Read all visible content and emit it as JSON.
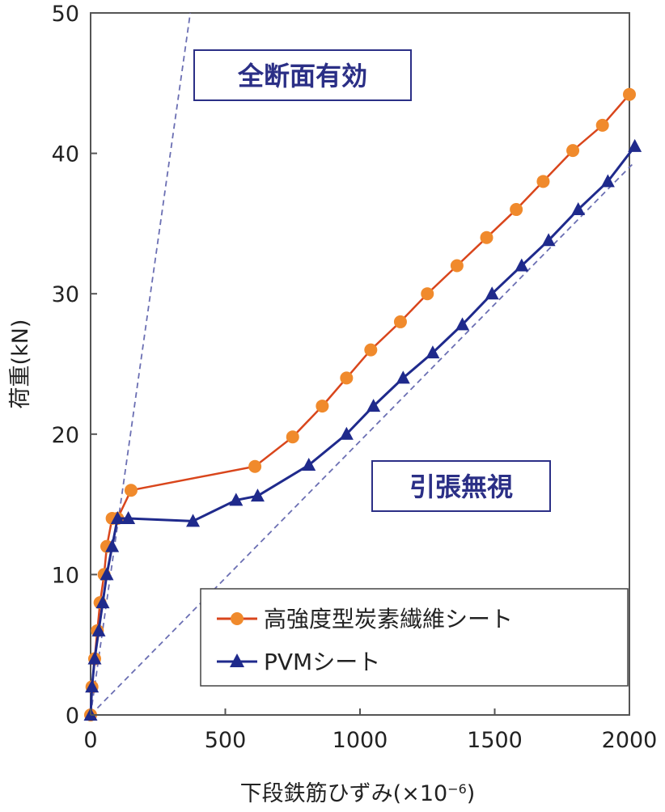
{
  "chart_data": {
    "type": "line",
    "xlabel": "下段鉄筋ひずみ(×10",
    "xlabel_exp": "−6",
    "xlabel_close": ")",
    "ylabel": "荷重(kN)",
    "xlim": [
      0,
      2000
    ],
    "ylim": [
      0,
      50
    ],
    "xticks": [
      0,
      500,
      1000,
      1500,
      2000
    ],
    "yticks": [
      0,
      10,
      20,
      30,
      40,
      50
    ],
    "grid": false,
    "legend_position": "bottom-right",
    "series": [
      {
        "name": "高強度型炭素繊維シート",
        "color": "#d9461c",
        "marker_color": "#f08a2c",
        "marker": "circle",
        "x": [
          0,
          5,
          15,
          25,
          35,
          50,
          60,
          80,
          100,
          150,
          610,
          750,
          860,
          950,
          1040,
          1150,
          1250,
          1360,
          1470,
          1580,
          1680,
          1790,
          1900,
          2000
        ],
        "y": [
          0,
          2,
          4,
          6,
          8,
          10,
          12,
          14,
          14,
          16,
          17.7,
          19.8,
          22,
          24,
          26,
          28,
          30,
          32,
          34,
          36,
          38,
          40.2,
          42,
          44.2
        ]
      },
      {
        "name": "PVMシート",
        "color": "#1f2a8c",
        "marker_color": "#1f2a8c",
        "marker": "triangle",
        "x": [
          0,
          5,
          15,
          30,
          45,
          60,
          80,
          100,
          140,
          380,
          540,
          620,
          810,
          950,
          1050,
          1160,
          1270,
          1380,
          1490,
          1600,
          1700,
          1810,
          1920,
          2020
        ],
        "y": [
          0,
          2,
          4,
          6,
          8,
          10,
          12,
          14,
          14,
          13.8,
          15.3,
          15.6,
          17.8,
          20,
          22,
          24,
          25.8,
          27.8,
          30,
          32,
          33.8,
          36,
          38,
          40.5
        ]
      }
    ],
    "reference_lines": [
      {
        "from": [
          0,
          0
        ],
        "to": [
          370,
          50
        ],
        "color": "#6b6fb3",
        "style": "dashed"
      },
      {
        "from": [
          0,
          0
        ],
        "to": [
          2010,
          39.2
        ],
        "color": "#6b6fb3",
        "style": "dashed"
      }
    ],
    "annotations": [
      {
        "text": "全断面有効",
        "color": "#2b2f86"
      },
      {
        "text": "引張無視",
        "color": "#2b2f86"
      }
    ]
  }
}
